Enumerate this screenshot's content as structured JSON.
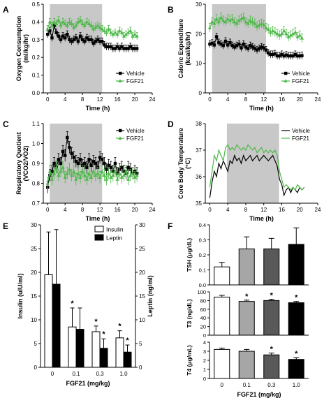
{
  "chart_data": [
    {
      "panel": "A",
      "type": "line",
      "ylabel": "Oxygen Consumption (ml/kg/hr)",
      "xlabel": "Time (h)",
      "ylim": [
        0.0,
        0.5
      ],
      "yticks": [
        "0.0",
        "0.1",
        "0.2",
        "0.3",
        "0.4",
        "0.5"
      ],
      "xlim": [
        -1,
        24
      ],
      "xticks": [
        "0",
        "4",
        "8",
        "12",
        "16",
        "20",
        "24"
      ],
      "shaded": [
        0.5,
        12.5
      ],
      "legend": "lower-right",
      "series": [
        {
          "name": "Vehicle",
          "color": "#000000",
          "marker": "square",
          "x": [
            0,
            0.5,
            1,
            1.5,
            2,
            2.5,
            3,
            3.5,
            4,
            4.5,
            5,
            5.5,
            6,
            6.5,
            7,
            7.5,
            8,
            8.5,
            9,
            9.5,
            10,
            10.5,
            11,
            11.5,
            12,
            12.5,
            13,
            13.5,
            14,
            14.5,
            15,
            15.5,
            16,
            16.5,
            17,
            17.5,
            18,
            18.5,
            19,
            19.5,
            20,
            20.5
          ],
          "y": [
            0.33,
            0.35,
            0.31,
            0.38,
            0.34,
            0.32,
            0.3,
            0.32,
            0.31,
            0.33,
            0.3,
            0.29,
            0.3,
            0.31,
            0.29,
            0.32,
            0.3,
            0.29,
            0.31,
            0.3,
            0.3,
            0.28,
            0.29,
            0.3,
            0.29,
            0.29,
            0.27,
            0.26,
            0.26,
            0.26,
            0.25,
            0.25,
            0.26,
            0.25,
            0.26,
            0.25,
            0.25,
            0.25,
            0.26,
            0.25,
            0.25,
            0.25
          ],
          "err": 0.02
        },
        {
          "name": "FGF21",
          "color": "#4db848",
          "marker": "triangle",
          "x": [
            0,
            0.5,
            1,
            1.5,
            2,
            2.5,
            3,
            3.5,
            4,
            4.5,
            5,
            5.5,
            6,
            6.5,
            7,
            7.5,
            8,
            8.5,
            9,
            9.5,
            10,
            10.5,
            11,
            11.5,
            12,
            12.5,
            13,
            13.5,
            14,
            14.5,
            15,
            15.5,
            16,
            16.5,
            17,
            17.5,
            18,
            18.5,
            19,
            19.5,
            20,
            20.5
          ],
          "y": [
            0.36,
            0.4,
            0.38,
            0.4,
            0.39,
            0.41,
            0.38,
            0.4,
            0.39,
            0.38,
            0.4,
            0.39,
            0.37,
            0.38,
            0.4,
            0.41,
            0.39,
            0.38,
            0.4,
            0.39,
            0.38,
            0.36,
            0.37,
            0.38,
            0.37,
            0.36,
            0.35,
            0.34,
            0.36,
            0.34,
            0.33,
            0.34,
            0.33,
            0.35,
            0.34,
            0.32,
            0.33,
            0.34,
            0.35,
            0.32,
            0.33,
            0.32
          ],
          "err": 0.02
        }
      ]
    },
    {
      "panel": "B",
      "type": "line",
      "ylabel": "Caloric Expenditure (kcal/kg/hr)",
      "xlabel": "Time (h)",
      "ylim": [
        0,
        30
      ],
      "yticks": [
        "0",
        "10",
        "20",
        "30"
      ],
      "xlim": [
        -1,
        24
      ],
      "xticks": [
        "0",
        "4",
        "8",
        "12",
        "16",
        "20",
        "24"
      ],
      "shaded": [
        0.5,
        12.5
      ],
      "legend": "lower-right",
      "series": [
        {
          "name": "Vehicle",
          "color": "#000000",
          "marker": "square",
          "x": [
            0,
            0.5,
            1,
            1.5,
            2,
            2.5,
            3,
            3.5,
            4,
            4.5,
            5,
            5.5,
            6,
            6.5,
            7,
            7.5,
            8,
            8.5,
            9,
            9.5,
            10,
            10.5,
            11,
            11.5,
            12,
            12.5,
            13,
            13.5,
            14,
            14.5,
            15,
            15.5,
            16,
            16.5,
            17,
            17.5,
            18,
            18.5,
            19,
            19.5,
            20,
            20.5
          ],
          "y": [
            16.5,
            16.8,
            16.2,
            19.0,
            17.0,
            16.5,
            16.0,
            17.5,
            16.2,
            17.0,
            16.0,
            15.5,
            16.0,
            16.5,
            15.2,
            16.5,
            15.5,
            15.0,
            16.0,
            15.5,
            15.0,
            14.5,
            15.0,
            15.5,
            15.2,
            14.5,
            13.5,
            13.0,
            13.0,
            13.2,
            12.5,
            12.5,
            13.0,
            12.5,
            12.8,
            12.5,
            12.5,
            12.5,
            13.0,
            12.5,
            12.5,
            12.6
          ],
          "err": 1.2
        },
        {
          "name": "FGF21",
          "color": "#4db848",
          "marker": "triangle",
          "x": [
            0,
            0.5,
            1,
            1.5,
            2,
            2.5,
            3,
            3.5,
            4,
            4.5,
            5,
            5.5,
            6,
            6.5,
            7,
            7.5,
            8,
            8.5,
            9,
            9.5,
            10,
            10.5,
            11,
            11.5,
            12,
            12.5,
            13,
            13.5,
            14,
            14.5,
            15,
            15.5,
            16,
            16.5,
            17,
            17.5,
            18,
            18.5,
            19,
            19.5,
            20,
            20.5
          ],
          "y": [
            22.0,
            24.0,
            23.5,
            25.0,
            24.0,
            25.5,
            24.5,
            24.0,
            25.0,
            24.5,
            25.0,
            24.0,
            23.5,
            24.5,
            25.0,
            25.5,
            24.0,
            23.5,
            24.5,
            24.0,
            23.5,
            22.5,
            23.0,
            23.5,
            23.0,
            22.0,
            21.5,
            20.5,
            21.0,
            20.5,
            20.0,
            19.5,
            20.0,
            21.0,
            20.0,
            19.0,
            19.5,
            20.0,
            20.5,
            19.0,
            19.5,
            18.5
          ],
          "err": 1.5
        }
      ]
    },
    {
      "panel": "C",
      "type": "line",
      "ylabel": "Respiratory Quotient (VCO2/VO2)",
      "xlabel": "Time (h)",
      "ylim": [
        0.7,
        1.1
      ],
      "yticks": [
        "0.7",
        "0.8",
        "0.9",
        "1.0",
        "1.1"
      ],
      "xlim": [
        -1,
        24
      ],
      "xticks": [
        "0",
        "4",
        "8",
        "12",
        "16",
        "20",
        "24"
      ],
      "shaded": [
        0.5,
        12.5
      ],
      "legend": "upper-right",
      "series": [
        {
          "name": "Vehicle",
          "color": "#000000",
          "marker": "square",
          "x": [
            0,
            0.5,
            1,
            1.5,
            2,
            2.5,
            3,
            3.5,
            4,
            4.5,
            5,
            5.5,
            6,
            6.5,
            7,
            7.5,
            8,
            8.5,
            9,
            9.5,
            10,
            10.5,
            11,
            11.5,
            12,
            12.5,
            13,
            13.5,
            14,
            14.5,
            15,
            15.5,
            16,
            16.5,
            17,
            17.5,
            18,
            18.5,
            19,
            19.5,
            20,
            20.5
          ],
          "y": [
            0.78,
            0.84,
            0.86,
            0.9,
            0.88,
            0.92,
            0.9,
            0.96,
            0.94,
            1.03,
            0.98,
            0.95,
            0.93,
            0.91,
            0.9,
            0.92,
            0.89,
            0.9,
            0.88,
            0.92,
            0.89,
            0.91,
            0.9,
            0.88,
            0.93,
            0.92,
            0.9,
            0.87,
            0.89,
            0.88,
            0.86,
            0.9,
            0.85,
            0.87,
            0.88,
            0.86,
            0.85,
            0.88,
            0.87,
            0.85,
            0.86,
            0.85
          ],
          "err": 0.03
        },
        {
          "name": "FGF21",
          "color": "#4db848",
          "marker": "triangle",
          "x": [
            0,
            0.5,
            1,
            1.5,
            2,
            2.5,
            3,
            3.5,
            4,
            4.5,
            5,
            5.5,
            6,
            6.5,
            7,
            7.5,
            8,
            8.5,
            9,
            9.5,
            10,
            10.5,
            11,
            11.5,
            12,
            12.5,
            13,
            13.5,
            14,
            14.5,
            15,
            15.5,
            16,
            16.5,
            17,
            17.5,
            18,
            18.5,
            19,
            19.5,
            20,
            20.5
          ],
          "y": [
            0.8,
            0.86,
            0.82,
            0.85,
            0.88,
            0.84,
            0.86,
            0.88,
            0.83,
            0.85,
            0.87,
            0.84,
            0.86,
            0.82,
            0.85,
            0.83,
            0.86,
            0.84,
            0.82,
            0.85,
            0.83,
            0.86,
            0.84,
            0.85,
            0.83,
            0.86,
            0.84,
            0.82,
            0.85,
            0.83,
            0.84,
            0.86,
            0.82,
            0.85,
            0.83,
            0.84,
            0.86,
            0.82,
            0.84,
            0.85,
            0.83,
            0.84
          ],
          "err": 0.03
        }
      ]
    },
    {
      "panel": "D",
      "type": "line",
      "ylabel": "Core Body Temperature (°C)",
      "xlabel": "Time (h)",
      "ylim": [
        35,
        38
      ],
      "yticks": [
        "35",
        "36",
        "37",
        "38"
      ],
      "xlim": [
        -1,
        24
      ],
      "xticks": [
        "0",
        "4",
        "8",
        "12",
        "16",
        "20",
        "24"
      ],
      "shaded": [
        3.8,
        15.4
      ],
      "legend": "upper-right",
      "series": [
        {
          "name": "Vehicle",
          "color": "#000000",
          "x": [
            0,
            0.5,
            1,
            1.5,
            2,
            2.5,
            3,
            3.5,
            4,
            4.5,
            5,
            5.5,
            6,
            6.5,
            7,
            7.5,
            8,
            8.5,
            9,
            9.5,
            10,
            10.5,
            11,
            11.5,
            12,
            12.5,
            13,
            13.5,
            14,
            14.5,
            15,
            15.5,
            16,
            16.5,
            17,
            17.5,
            18,
            18.5,
            19,
            19.5,
            20,
            20.5,
            21
          ],
          "y": [
            35.2,
            35.8,
            36.2,
            36.0,
            36.5,
            36.3,
            36.6,
            36.4,
            36.2,
            36.6,
            36.5,
            36.8,
            36.6,
            36.7,
            36.5,
            36.8,
            36.6,
            36.7,
            36.8,
            36.6,
            36.7,
            36.8,
            36.6,
            36.7,
            36.8,
            36.7,
            36.6,
            36.7,
            36.8,
            36.6,
            36.4,
            35.9,
            35.7,
            35.3,
            35.5,
            35.6,
            35.4,
            35.6,
            35.5,
            35.4,
            35.6,
            35.5,
            35.6
          ]
        },
        {
          "name": "FGF21",
          "color": "#4db848",
          "x": [
            0,
            0.5,
            1,
            1.5,
            2,
            2.5,
            3,
            3.5,
            4,
            4.5,
            5,
            5.5,
            6,
            6.5,
            7,
            7.5,
            8,
            8.5,
            9,
            9.5,
            10,
            10.5,
            11,
            11.5,
            12,
            12.5,
            13,
            13.5,
            14,
            14.5,
            15,
            15.5,
            16,
            16.5,
            17,
            17.5,
            18,
            18.5,
            19,
            19.5,
            20,
            20.5,
            21
          ],
          "y": [
            35.6,
            36.2,
            36.8,
            36.6,
            37.0,
            36.8,
            36.6,
            37.1,
            37.2,
            37.0,
            37.1,
            37.0,
            37.2,
            37.1,
            37.0,
            37.1,
            37.0,
            37.2,
            37.1,
            37.0,
            37.1,
            36.9,
            37.0,
            37.1,
            36.9,
            37.0,
            36.9,
            37.0,
            36.9,
            37.0,
            36.8,
            36.2,
            35.9,
            35.6,
            35.7,
            35.6,
            35.5,
            35.6,
            35.5,
            35.7,
            35.6,
            35.5,
            35.6
          ]
        }
      ]
    },
    {
      "panel": "E",
      "type": "bar",
      "xlabel": "FGF21 (mg/kg)",
      "ylabel": "Insulin (uIU/ml)",
      "ylabel_right": "Leptin (ng/ml)",
      "categories": [
        "0",
        "0.1",
        "0.3",
        "1.0"
      ],
      "ylim": [
        0,
        30
      ],
      "yticks": [
        "0",
        "5",
        "10",
        "15",
        "20",
        "25",
        "30"
      ],
      "legend": "upper-right",
      "series": [
        {
          "name": "Insulin",
          "color": "#ffffff",
          "values": [
            19.5,
            8.5,
            7.5,
            6.2
          ],
          "err": [
            9.0,
            4.0,
            1.2,
            1.5
          ],
          "sig": [
            "",
            "*",
            "*",
            "*"
          ]
        },
        {
          "name": "Leptin",
          "color": "#000000",
          "values": [
            17.5,
            8.0,
            4.0,
            3.2
          ],
          "err": [
            11.5,
            4.5,
            2.0,
            1.5
          ],
          "sig": [
            "",
            "",
            "*",
            "*"
          ]
        }
      ]
    },
    {
      "panel": "F",
      "type": "bar",
      "xlabel": "FGF21 (mg/kg)",
      "categories": [
        "0",
        "0.1",
        "0.3",
        "1.0"
      ],
      "bar_colors": [
        "#ffffff",
        "#a6a6a6",
        "#595959",
        "#000000"
      ],
      "subplots": [
        {
          "ylabel": "TSH (μg/dL)",
          "ylim": [
            0,
            0.4
          ],
          "yticks": [
            "0.0",
            "0.1",
            "0.2",
            "0.3",
            "0.4"
          ],
          "values": [
            0.12,
            0.24,
            0.24,
            0.27
          ],
          "err": [
            0.03,
            0.08,
            0.07,
            0.11
          ],
          "sig": [
            "",
            "",
            "",
            ""
          ]
        },
        {
          "ylabel": "T3 (ng/dL)",
          "ylim": [
            0,
            100
          ],
          "yticks": [
            "0",
            "20",
            "40",
            "60",
            "80",
            "100"
          ],
          "values": [
            88,
            78,
            80,
            75
          ],
          "err": [
            4,
            3,
            3,
            3
          ],
          "sig": [
            "",
            "*",
            "*",
            "*"
          ]
        },
        {
          "ylabel": "T4 (μg/mL)",
          "ylim": [
            0,
            4
          ],
          "yticks": [
            "0",
            "1",
            "2",
            "3",
            "4"
          ],
          "values": [
            3.2,
            3.0,
            2.6,
            2.1
          ],
          "err": [
            0.15,
            0.2,
            0.2,
            0.2
          ],
          "sig": [
            "",
            "",
            "*",
            "*"
          ]
        }
      ]
    }
  ]
}
